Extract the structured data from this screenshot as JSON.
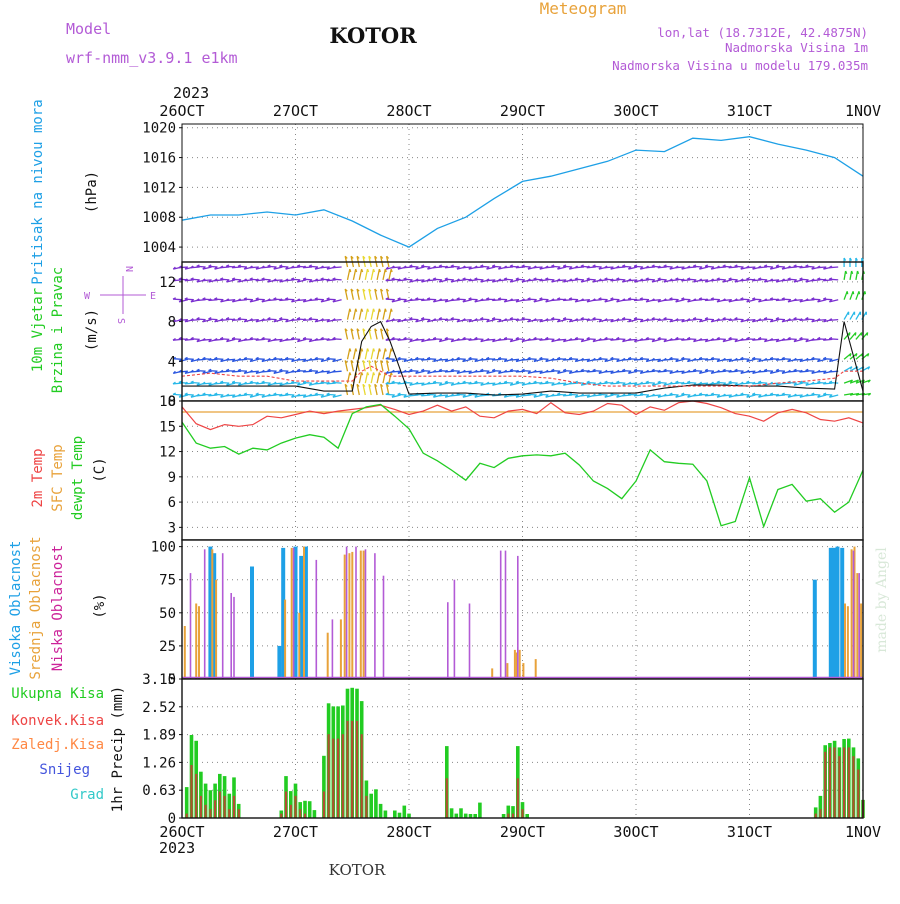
{
  "header": {
    "model_label": "Model",
    "model_name": "wrf-nmm_v3.9.1  e1km",
    "station": "KOTOR",
    "meteogram": "Meteogram",
    "lonlat": "lon,lat (18.7312E, 42.4875N)",
    "altitude": "Nadmorska Visina 1m",
    "model_altitude": "Nadmorska Visina u modelu 179.035m",
    "footer_station": "KOTOR",
    "credit": "made by Angel"
  },
  "colors": {
    "purple": "#b35bd6",
    "pressure": "#1ea0e6",
    "green": "#22cc22",
    "red": "#ee4444",
    "orange": "#e8a23a",
    "magenta": "#cc2299",
    "blue": "#2f5be8",
    "cyan": "#33c9c9",
    "wind_purple": "#7a2fd0",
    "wind_blue": "#2a56e0",
    "wind_cyan": "#27b8e8",
    "wind_yellow": "#e8d830",
    "gold": "#d4a017"
  },
  "time_axis": {
    "year_top": "2023",
    "year_bottom": "2023",
    "ticks": [
      "26OCT",
      "27OCT",
      "28OCT",
      "29OCT",
      "30OCT",
      "31OCT",
      "1NOV"
    ]
  },
  "chart_data": [
    {
      "type": "line",
      "panel": "pressure",
      "ylabel": [
        "Pritisak na nivou mora",
        "(hPa)"
      ],
      "ylim": [
        1002,
        1020.5
      ],
      "yticks": [
        "1004",
        "1008",
        "1012",
        "1016",
        "1020"
      ],
      "grid": true,
      "x_hours": [
        0,
        6,
        12,
        18,
        24,
        30,
        36,
        42,
        48,
        54,
        60,
        66,
        72,
        78,
        84,
        90,
        96,
        102,
        108,
        114,
        120,
        126,
        132,
        138,
        144
      ],
      "series": [
        {
          "values": [
            1007.6,
            1008.3,
            1008.3,
            1008.7,
            1008.3,
            1009.0,
            1007.5,
            1005.6,
            1004.0,
            1006.5,
            1008.0,
            1010.5,
            1012.8,
            1013.5,
            1014.5,
            1015.5,
            1017.0,
            1016.8,
            1018.6,
            1018.3,
            1018.8,
            1017.8,
            1017.0,
            1016.0,
            1013.5
          ]
        }
      ]
    },
    {
      "type": "line",
      "panel": "wind",
      "ylabel": [
        "10m Vjetar",
        "Brzina i Pravac",
        "(m/s)"
      ],
      "legend_glyph": [
        "N",
        "W",
        "E",
        "S"
      ],
      "ylim": [
        0,
        14
      ],
      "yticks": [
        "0",
        "4",
        "8",
        "12"
      ],
      "grid": true,
      "x_hours": [
        0,
        6,
        12,
        18,
        24,
        30,
        36,
        38,
        40,
        42,
        44,
        48,
        54,
        60,
        66,
        72,
        78,
        84,
        90,
        96,
        102,
        108,
        114,
        120,
        126,
        132,
        138,
        140,
        144
      ],
      "series": [
        {
          "values": [
            1.5,
            1.5,
            1.5,
            1.5,
            1.5,
            1.0,
            1.0,
            6.0,
            7.5,
            8.0,
            6.0,
            0.7,
            0.8,
            0.8,
            0.6,
            0.7,
            1.0,
            0.8,
            0.8,
            0.8,
            1.3,
            1.6,
            1.6,
            1.5,
            1.5,
            1.3,
            1.2,
            8.0,
            1.0
          ]
        },
        {
          "values": [
            2.5,
            2.8,
            2.5,
            2.5,
            2.0,
            2.0,
            2.0,
            3.0,
            3.5,
            3.0,
            2.5,
            2.5,
            2.5,
            2.5,
            2.5,
            2.5,
            2.3,
            1.8,
            1.5,
            1.5,
            1.5,
            1.5,
            1.5,
            1.5,
            1.8,
            2.0,
            2.3,
            3.0,
            3.0
          ]
        }
      ],
      "barb_rows_ms": [
        13.5,
        12.2,
        10.2,
        8.2,
        6.2,
        4.2,
        3.0,
        1.8,
        0.6
      ]
    },
    {
      "type": "line",
      "panel": "temperature",
      "ylabel": [
        "2m Temp",
        "SFC Temp",
        "dewpt Temp",
        "(C)"
      ],
      "ylim": [
        1.5,
        18
      ],
      "yticks": [
        "3",
        "6",
        "9",
        "12",
        "15",
        "18"
      ],
      "grid": true,
      "x_hours": [
        0,
        3,
        6,
        9,
        12,
        15,
        18,
        21,
        24,
        27,
        30,
        33,
        36,
        39,
        42,
        45,
        48,
        51,
        54,
        57,
        60,
        63,
        66,
        69,
        72,
        75,
        78,
        81,
        84,
        87,
        90,
        93,
        96,
        99,
        102,
        105,
        108,
        111,
        114,
        117,
        120,
        123,
        126,
        129,
        132,
        135,
        138,
        141,
        144
      ],
      "series": [
        {
          "values": [
            17.3,
            15.3,
            14.6,
            15.2,
            15.0,
            15.2,
            16.2,
            16.0,
            16.4,
            16.8,
            16.5,
            16.8,
            17.0,
            17.2,
            17.5,
            17.0,
            16.4,
            16.8,
            17.5,
            16.8,
            17.3,
            16.2,
            16.0,
            16.8,
            17.0,
            16.5,
            17.8,
            16.6,
            16.4,
            16.8,
            17.7,
            17.5,
            16.4,
            17.3,
            16.9,
            17.8,
            18.0,
            17.7,
            17.2,
            16.5,
            16.2,
            15.6,
            16.6,
            17.0,
            16.6,
            15.8,
            15.6,
            16.0,
            15.4
          ]
        },
        {
          "values": [
            16.7,
            16.7,
            16.7,
            16.7,
            16.7,
            16.7,
            16.7,
            16.7,
            16.7,
            16.7,
            16.7,
            16.7,
            16.7,
            16.7,
            16.7,
            16.7,
            16.7,
            16.7,
            16.7,
            16.7,
            16.7,
            16.7,
            16.7,
            16.7,
            16.7,
            16.7,
            16.7,
            16.7,
            16.7,
            16.7,
            16.7,
            16.7,
            16.7,
            16.7,
            16.7,
            16.7,
            16.7,
            16.7,
            16.7,
            16.7,
            16.7,
            16.7,
            16.7,
            16.7,
            16.7,
            16.7,
            16.7,
            16.7,
            16.7
          ]
        },
        {
          "values": [
            15.5,
            13.0,
            12.4,
            12.6,
            11.7,
            12.4,
            12.2,
            13.0,
            13.6,
            14.0,
            13.7,
            12.4,
            16.5,
            17.3,
            17.6,
            16.2,
            14.7,
            11.8,
            10.9,
            9.8,
            8.6,
            10.6,
            10.1,
            11.2,
            11.5,
            11.6,
            11.5,
            11.8,
            10.4,
            8.5,
            7.6,
            6.4,
            8.5,
            12.2,
            10.8,
            10.6,
            10.5,
            8.5,
            3.2,
            3.7,
            8.9,
            3.1,
            7.5,
            8.1,
            6.1,
            6.4,
            4.8,
            6.0,
            9.8
          ]
        }
      ]
    },
    {
      "type": "bar",
      "panel": "cloud",
      "ylabel": [
        "Visoka Oblacnost",
        "Srednja Oblacnost",
        "Niska Oblacnost",
        "(%)"
      ],
      "ylim": [
        0,
        105
      ],
      "yticks": [
        "0",
        "25",
        "50",
        "75",
        "100"
      ],
      "grid": true,
      "series": [
        {
          "name": "Visoka Oblacnost",
          "x_hours": [
            6.0,
            6.8,
            14.8,
            20.6,
            21.4,
            24.0,
            25.2,
            26.2,
            133.8,
            137.2,
            137.6,
            138.0,
            138.6,
            139.6
          ],
          "values": [
            100,
            95,
            85,
            25,
            99,
            100,
            93,
            100,
            75,
            99,
            99,
            99,
            100,
            99
          ]
        },
        {
          "name": "Srednja Oblacnost",
          "x_hours": [
            0.6,
            3.0,
            3.6,
            6.4,
            7.2,
            21.8,
            23.2,
            24.8,
            25.8,
            30.8,
            33.6,
            34.4,
            35.4,
            36.0,
            37.8,
            38.4,
            65.6,
            68.8,
            70.4,
            70.8,
            71.4,
            72.2,
            74.8,
            140.2,
            140.8,
            141.6,
            142.2,
            142.8,
            143.6
          ],
          "values": [
            40,
            57,
            55,
            98,
            75,
            60,
            99,
            50,
            100,
            35,
            45,
            94,
            95,
            96,
            97,
            97,
            8,
            12,
            22,
            20,
            22,
            12,
            15,
            57,
            55,
            98,
            100,
            80,
            57
          ]
        },
        {
          "name": "Niska Oblacnost",
          "x_hours": [
            1.8,
            4.8,
            8.6,
            10.4,
            11.0,
            23.6,
            28.4,
            31.8,
            34.8,
            36.8,
            38.8,
            40.8,
            42.6,
            56.2,
            57.6,
            60.8,
            67.4,
            68.4,
            71.0,
            142.0,
            143.2
          ],
          "values": [
            80,
            98,
            95,
            65,
            62,
            99,
            90,
            45,
            100,
            100,
            98,
            95,
            78,
            58,
            75,
            57,
            97,
            97,
            93,
            97,
            80
          ]
        }
      ]
    },
    {
      "type": "bar",
      "panel": "precip",
      "ylabel": [
        "1hr Precip (mm)"
      ],
      "ylim": [
        0,
        3.15
      ],
      "yticks": [
        "0",
        "0.63",
        "1.26",
        "1.89",
        "2.52",
        "3.15"
      ],
      "grid": true,
      "legend": [
        "Ukupna Kisa",
        "Konvek.Kisa",
        "Zaledj.Kisa",
        "Snijeg",
        "Grad"
      ],
      "series": [
        {
          "name": "Ukupna Kisa",
          "x_hours": [
            1,
            2,
            3,
            4,
            5,
            6,
            7,
            8,
            9,
            10,
            11,
            12,
            21,
            22,
            23,
            24,
            25,
            26,
            27,
            28,
            30,
            31,
            32,
            33,
            34,
            35,
            36,
            37,
            38,
            39,
            40,
            41,
            42,
            43,
            45,
            46,
            47,
            48,
            56,
            57,
            58,
            59,
            60,
            61,
            62,
            63,
            68,
            69,
            70,
            71,
            72,
            73,
            134,
            135,
            136,
            137,
            138,
            139,
            140,
            141,
            142,
            143,
            144
          ],
          "values": [
            0.7,
            1.88,
            1.75,
            1.05,
            0.78,
            0.63,
            0.78,
            1.0,
            0.95,
            0.55,
            0.92,
            0.32,
            0.17,
            0.95,
            0.61,
            0.78,
            0.36,
            0.39,
            0.38,
            0.18,
            1.41,
            2.6,
            2.53,
            2.53,
            2.55,
            2.93,
            2.95,
            2.93,
            2.65,
            0.85,
            0.55,
            0.65,
            0.32,
            0.17,
            0.17,
            0.12,
            0.28,
            0.1,
            1.63,
            0.22,
            0.1,
            0.22,
            0.1,
            0.09,
            0.09,
            0.35,
            0.09,
            0.28,
            0.27,
            1.63,
            0.36,
            0.09,
            0.24,
            0.5,
            1.65,
            1.7,
            1.75,
            1.6,
            1.79,
            1.8,
            1.6,
            1.35,
            0.41
          ]
        },
        {
          "name": "Konvek.Kisa",
          "x_hours": [
            1,
            2,
            3,
            4,
            5,
            6,
            7,
            8,
            9,
            10,
            11,
            12,
            21,
            22,
            23,
            24,
            25,
            26,
            30,
            31,
            32,
            33,
            34,
            35,
            36,
            37,
            38,
            39,
            56,
            69,
            70,
            71,
            72,
            134,
            135,
            136,
            137,
            138,
            139,
            140,
            141,
            142,
            143,
            144
          ],
          "values": [
            0.1,
            1.2,
            1.0,
            0.5,
            0.3,
            0.2,
            0.4,
            0.6,
            0.5,
            0.2,
            0.5,
            0.2,
            0.1,
            0.6,
            0.3,
            0.5,
            0.2,
            0.1,
            0.6,
            1.9,
            1.8,
            1.8,
            1.9,
            2.2,
            2.2,
            2.2,
            1.9,
            0.5,
            0.9,
            0.1,
            0.1,
            0.9,
            0.2,
            0.1,
            0.2,
            1.5,
            1.6,
            1.6,
            1.4,
            1.6,
            1.6,
            1.4,
            1.1,
            0.41
          ]
        }
      ]
    }
  ]
}
